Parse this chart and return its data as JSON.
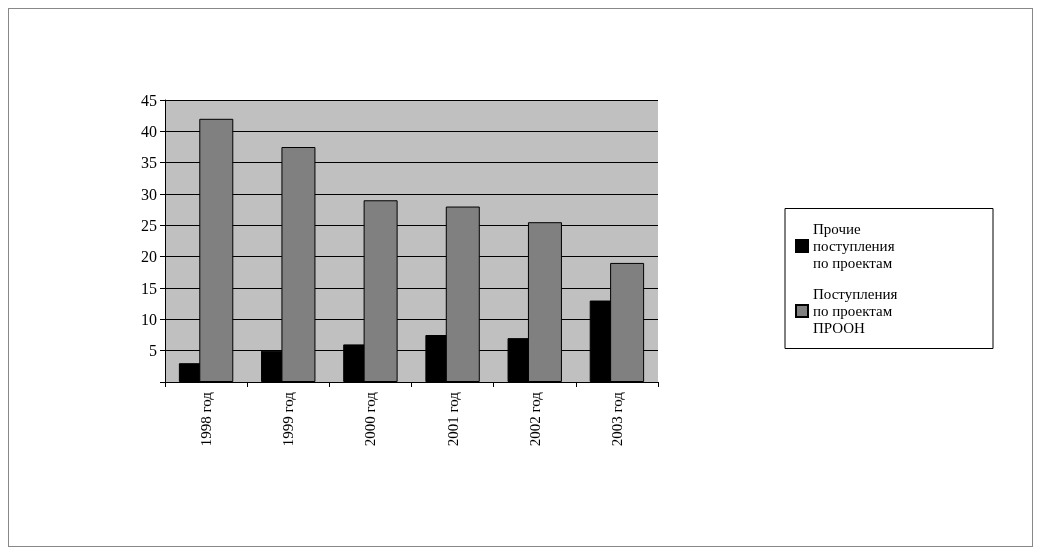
{
  "chart_data": {
    "type": "bar",
    "categories": [
      "1998 год",
      "1999 год",
      "2000 год",
      "2001 год",
      "2002 год",
      "2003 год"
    ],
    "series": [
      {
        "name": "Прочие поступления по проектам",
        "color": "#000000",
        "values": [
          3,
          5,
          6,
          7.5,
          7,
          13
        ]
      },
      {
        "name": "Поступления по проектам ПРООН",
        "color": "#808080",
        "values": [
          42,
          37.5,
          29,
          28,
          25.5,
          19
        ]
      }
    ],
    "ylim": [
      0,
      45
    ],
    "yticks": [
      {
        "value": 0,
        "label": null
      },
      5,
      10,
      15,
      20,
      25,
      30,
      35,
      40,
      45
    ],
    "grid": "y",
    "legend": "right"
  }
}
